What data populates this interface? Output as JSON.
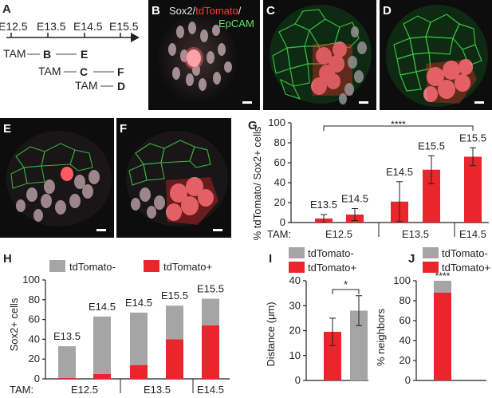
{
  "panels": {
    "A": "A",
    "B": "B",
    "C": "C",
    "D": "D",
    "E": "E",
    "F": "F",
    "G": "G",
    "H": "H",
    "I": "I",
    "J": "J"
  },
  "panel_a": {
    "timepoints": [
      "E12.5",
      "E13.5",
      "E14.5",
      "E15.5"
    ],
    "rows": [
      {
        "tam": "TAM",
        "marks": [
          "B",
          "E"
        ]
      },
      {
        "tam": "TAM",
        "marks": [
          "C",
          "F"
        ]
      },
      {
        "tam": "TAM",
        "marks": [
          "D"
        ]
      }
    ]
  },
  "legend_b": {
    "sox2": "Sox2/",
    "tdtomato": "tdTomato",
    "slash": "/",
    "epcam": "EpCAM"
  },
  "colors": {
    "red": "#e8262b",
    "gray": "#a5a5a5",
    "green": "#3fd04a",
    "dark": "#0d0d0d"
  },
  "chart_data": [
    {
      "panel": "G",
      "type": "bar",
      "ylabel": "% tdTomato/ Sox2+ cells",
      "ylim": [
        0,
        100
      ],
      "yticks": [
        0,
        20,
        40,
        60,
        80,
        100
      ],
      "x_row_label": "TAM:",
      "x_groups": [
        "E12.5",
        "E13.5",
        "E14.5"
      ],
      "categories": [
        "E13.5",
        "E14.5",
        "E14.5",
        "E15.5",
        "E15.5"
      ],
      "values": [
        4,
        8,
        21,
        53,
        66
      ],
      "errors": [
        4,
        6,
        20,
        14,
        9
      ],
      "significance": "****",
      "grid": false
    },
    {
      "panel": "H",
      "type": "bar",
      "stacked": true,
      "ylabel": "Sox2+ cells",
      "ylim": [
        0,
        100
      ],
      "yticks": [
        0,
        20,
        40,
        60,
        80,
        100
      ],
      "x_row_label": "TAM:",
      "x_groups": [
        "E12.5",
        "E13.5",
        "E14.5"
      ],
      "categories": [
        "E13.5",
        "E14.5",
        "E14.5",
        "E15.5",
        "E15.5"
      ],
      "series": [
        {
          "name": "tdTomato+",
          "values": [
            1,
            5,
            14,
            40,
            54
          ]
        },
        {
          "name": "tdTomato-",
          "values": [
            32,
            58,
            53,
            34,
            27
          ]
        }
      ],
      "legend": "top",
      "grid": false
    },
    {
      "panel": "I",
      "type": "bar",
      "ylabel": "Distance (μm)",
      "ylim": [
        0,
        40
      ],
      "yticks": [
        0,
        10,
        20,
        30,
        40
      ],
      "categories": [
        "tdTomato+",
        "tdTomato-"
      ],
      "values": [
        19.5,
        28
      ],
      "errors": [
        5.5,
        6
      ],
      "significance": "*",
      "legend_series": [
        "tdTomato-",
        "tdTomato+"
      ],
      "grid": false
    },
    {
      "panel": "J",
      "type": "bar",
      "stacked": true,
      "ylabel": "% neighbors",
      "ylim": [
        0,
        100
      ],
      "yticks": [
        0,
        20,
        40,
        60,
        80,
        100
      ],
      "series": [
        {
          "name": "tdTomato+",
          "values": [
            88
          ]
        },
        {
          "name": "tdTomato-",
          "values": [
            12
          ]
        }
      ],
      "significance": "****",
      "grid": false
    }
  ],
  "legend_h": {
    "neg": "tdTomato-",
    "pos": "tdTomato+"
  },
  "legend_i": {
    "neg": "tdTomato-",
    "pos": "tdTomato+"
  },
  "legend_j": {
    "neg": "tdTomato-",
    "pos": "tdTomato+"
  }
}
